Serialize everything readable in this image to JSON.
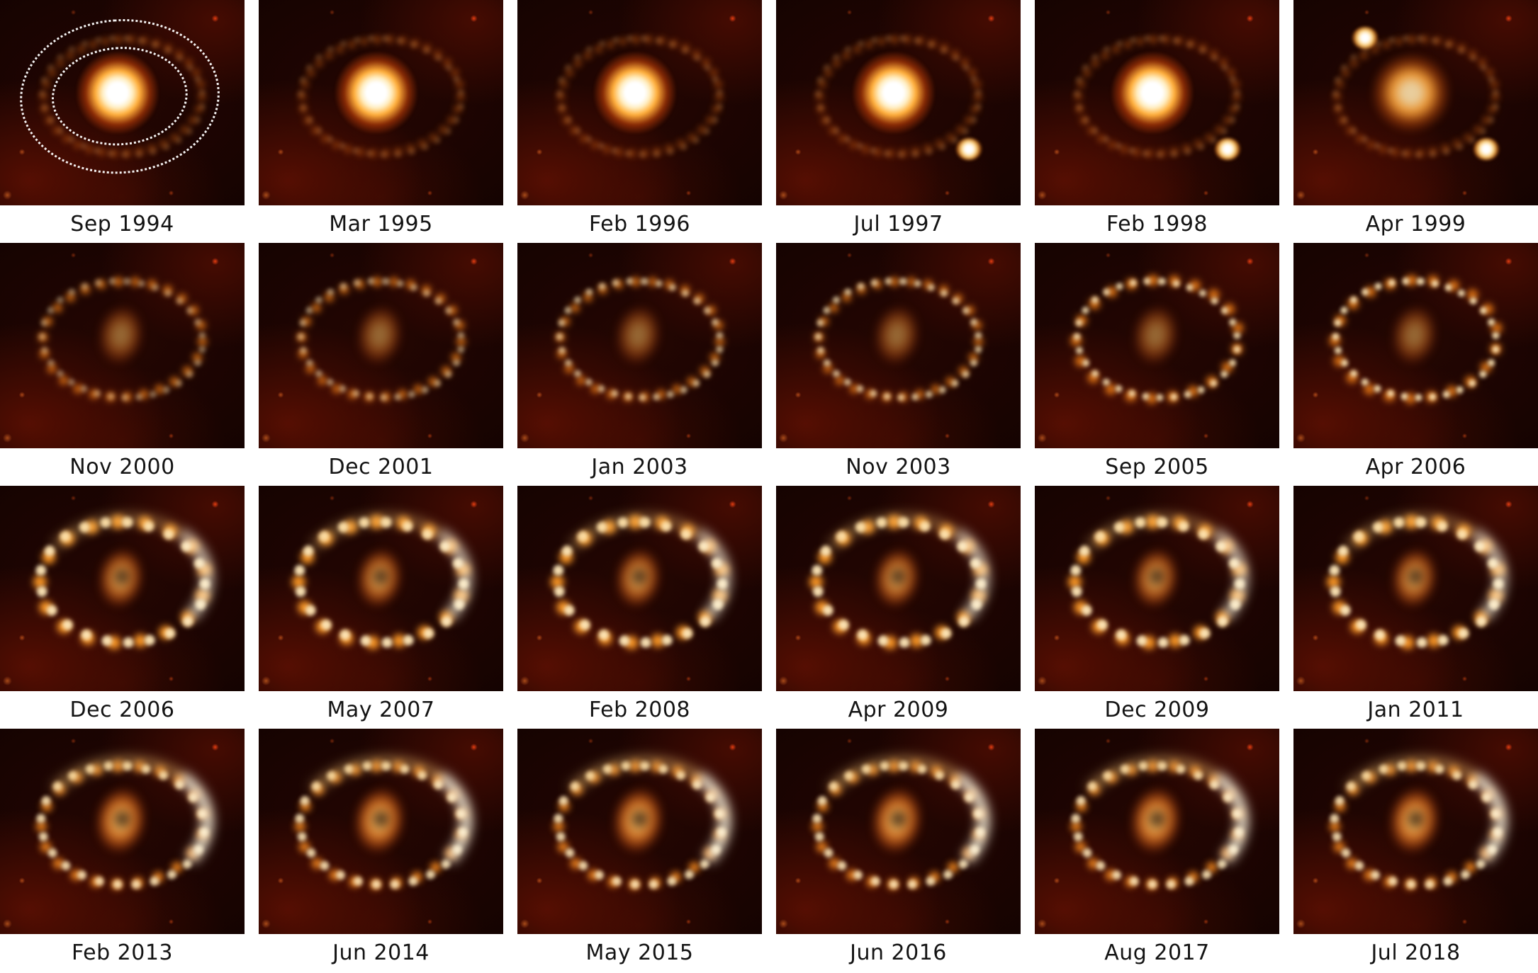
{
  "figure": {
    "type": "image-grid",
    "rows": 4,
    "cols": 6,
    "panel_content": "supernova-ring-image",
    "colors": {
      "page_background": "#ffffff",
      "image_background": "#140301",
      "ring_orange": "#ff8f20",
      "clump_white": "#fff3d8",
      "annotation_dots": "#ffffff",
      "caption_text": "#141414"
    },
    "panels": [
      {
        "label": "Sep 1994",
        "overlay": "dotted-ellipse-contours"
      },
      {
        "label": "Mar 1995"
      },
      {
        "label": "Feb 1996"
      },
      {
        "label": "Jul 1997"
      },
      {
        "label": "Feb 1998"
      },
      {
        "label": "Apr 1999"
      },
      {
        "label": "Nov 2000"
      },
      {
        "label": "Dec 2001"
      },
      {
        "label": "Jan 2003"
      },
      {
        "label": "Nov 2003"
      },
      {
        "label": "Sep 2005"
      },
      {
        "label": "Apr 2006"
      },
      {
        "label": "Dec 2006"
      },
      {
        "label": "May 2007"
      },
      {
        "label": "Feb 2008"
      },
      {
        "label": "Apr 2009"
      },
      {
        "label": "Dec 2009"
      },
      {
        "label": "Jan 2011"
      },
      {
        "label": "Feb 2013"
      },
      {
        "label": "Jun 2014"
      },
      {
        "label": "May 2015"
      },
      {
        "label": "Jun 2016"
      },
      {
        "label": "Aug 2017"
      },
      {
        "label": "Jul 2018"
      }
    ]
  }
}
